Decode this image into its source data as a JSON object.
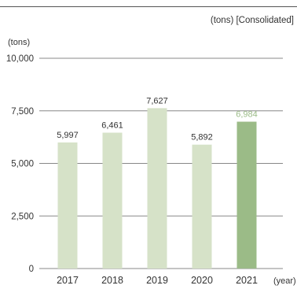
{
  "header": {
    "unit_note": "(tons) [Consolidated]"
  },
  "chart_data": {
    "type": "bar",
    "y_unit_label": "(tons)",
    "x_unit_label": "(year)",
    "categories": [
      "2017",
      "2018",
      "2019",
      "2020",
      "2021"
    ],
    "values": [
      5997,
      6461,
      7627,
      5892,
      6984
    ],
    "value_labels": [
      "5,997",
      "6,461",
      "7,627",
      "5,892",
      "6,984"
    ],
    "ylim": [
      0,
      10000
    ],
    "y_ticks": [
      0,
      2500,
      5000,
      7500,
      10000
    ],
    "y_tick_labels": [
      "0",
      "2,500",
      "5,000",
      "7,500",
      "10,000"
    ],
    "grid": true,
    "colors": {
      "bar_default": "#d6e2c8",
      "bar_highlight": "#9bbb87",
      "label_default": "#333333",
      "label_highlight": "#9bbb87",
      "gridline": "#888888"
    },
    "highlight_index": 4
  }
}
